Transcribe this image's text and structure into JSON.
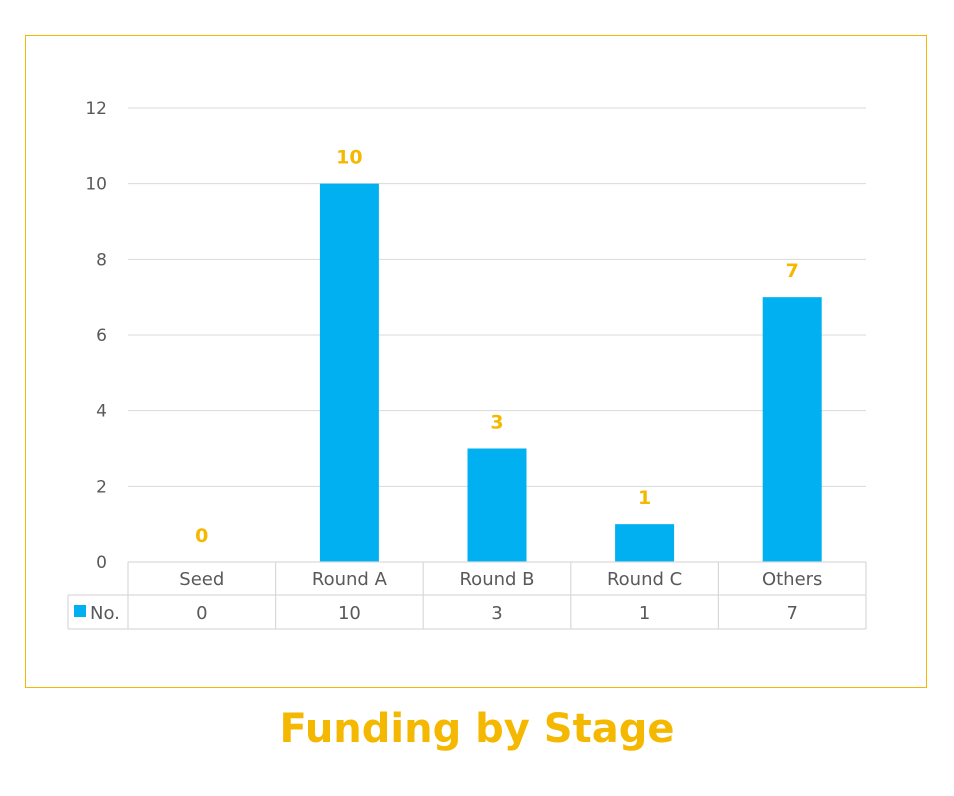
{
  "title": "Funding by Stage",
  "colors": {
    "bar": "#00b0f0",
    "accent": "#f5b800",
    "grid": "#d9d9d9",
    "text": "#595959"
  },
  "chart_data": {
    "type": "bar",
    "title": "Funding by Stage",
    "categories": [
      "Seed",
      "Round A",
      "Round B",
      "Round C",
      "Others"
    ],
    "series": [
      {
        "name": "No.",
        "values": [
          0,
          10,
          3,
          1,
          7
        ]
      }
    ],
    "ylim": [
      0,
      12
    ],
    "yticks": [
      "0",
      "2",
      "4",
      "6",
      "8",
      "10",
      "12"
    ],
    "data_labels": [
      "0",
      "10",
      "3",
      "1",
      "7"
    ],
    "table_values": [
      "0",
      "10",
      "3",
      "1",
      "7"
    ],
    "grid": true,
    "legend": "data-table"
  }
}
